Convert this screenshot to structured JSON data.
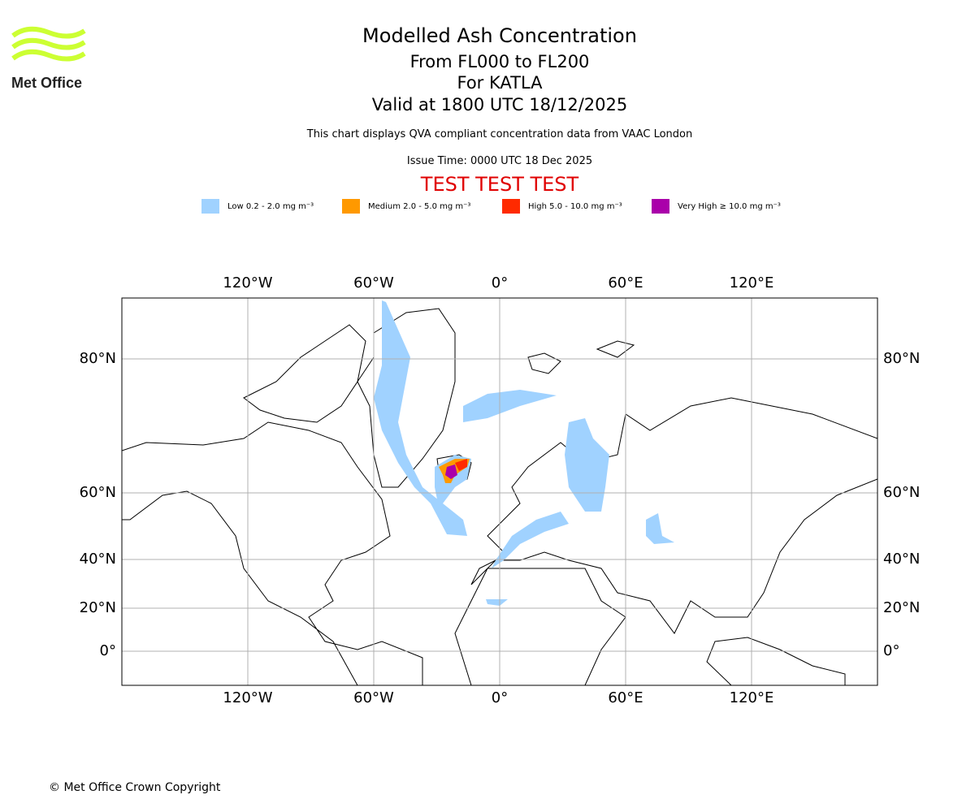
{
  "logo": {
    "text": "Met Office",
    "color": "#ccff33"
  },
  "header": {
    "title": "Modelled Ash Concentration",
    "levels": "From FL000 to FL200",
    "volcano": "For KATLA",
    "valid": "Valid at 1800 UTC 18/12/2025",
    "description": "This chart displays QVA compliant concentration data from VAAC London",
    "issue_time": "Issue Time: 0000 UTC 18 Dec 2025",
    "test_banner": "TEST TEST TEST"
  },
  "legend": [
    {
      "label": "Low 0.2 - 2.0 mg m⁻³",
      "color": "#a0d2ff"
    },
    {
      "label": "Medium 2.0 - 5.0 mg m⁻³",
      "color": "#ff9900"
    },
    {
      "label": "High 5.0 - 10.0 mg m⁻³",
      "color": "#ff2a00"
    },
    {
      "label": "Very High ≥ 10.0 mg m⁻³",
      "color": "#aa00aa"
    }
  ],
  "map": {
    "lon_ticks": [
      "120°W",
      "60°W",
      "0°",
      "60°E",
      "120°E"
    ],
    "lat_ticks": [
      "80°N",
      "60°N",
      "40°N",
      "20°N",
      "0°"
    ]
  },
  "footer": {
    "copyright": "© Met Office Crown Copyright"
  }
}
